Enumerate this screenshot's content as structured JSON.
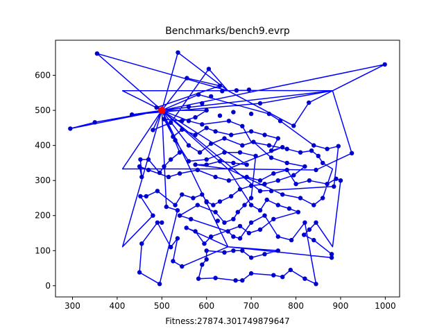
{
  "chart_data": {
    "type": "scatter",
    "title": "Benchmarks/bench9.evrp",
    "xlabel": "Fitness:27874.301749879647",
    "ylabel": "",
    "xlim": [
      262,
      1032
    ],
    "ylim": [
      -32,
      700
    ],
    "xticks": [
      300,
      400,
      500,
      600,
      700,
      800,
      900,
      1000
    ],
    "yticks": [
      0,
      100,
      200,
      300,
      400,
      500,
      600
    ],
    "grid": false,
    "colors": {
      "route": "#0000ff",
      "customer": "#0000cc",
      "depot": "#ff0000",
      "station": "#008000"
    },
    "depot": {
      "x": 500,
      "y": 500
    },
    "stations": [
      {
        "x": 412,
        "y": 556
      },
      {
        "x": 648,
        "y": 556
      },
      {
        "x": 882,
        "y": 556
      },
      {
        "x": 412,
        "y": 333
      },
      {
        "x": 648,
        "y": 333
      },
      {
        "x": 882,
        "y": 333
      },
      {
        "x": 412,
        "y": 111
      },
      {
        "x": 648,
        "y": 111
      },
      {
        "x": 882,
        "y": 111
      }
    ],
    "customers": [
      [
        355,
        662
      ],
      [
        536,
        665
      ],
      [
        999,
        631
      ],
      [
        605,
        618
      ],
      [
        556,
        592
      ],
      [
        630,
        570
      ],
      [
        635,
        555
      ],
      [
        667,
        557
      ],
      [
        582,
        545
      ],
      [
        695,
        559
      ],
      [
        829,
        522
      ],
      [
        488,
        508
      ],
      [
        295,
        448
      ],
      [
        350,
        466
      ],
      [
        433,
        488
      ],
      [
        480,
        444
      ],
      [
        520,
        465
      ],
      [
        560,
        470
      ],
      [
        590,
        460
      ],
      [
        650,
        470
      ],
      [
        680,
        455
      ],
      [
        795,
        456
      ],
      [
        525,
        425
      ],
      [
        545,
        445
      ],
      [
        575,
        430
      ],
      [
        600,
        450
      ],
      [
        620,
        440
      ],
      [
        655,
        430
      ],
      [
        700,
        440
      ],
      [
        730,
        430
      ],
      [
        760,
        420
      ],
      [
        840,
        400
      ],
      [
        870,
        390
      ],
      [
        895,
        398
      ],
      [
        925,
        378
      ],
      [
        835,
        385
      ],
      [
        850,
        370
      ],
      [
        860,
        350
      ],
      [
        810,
        380
      ],
      [
        780,
        390
      ],
      [
        740,
        400
      ],
      [
        705,
        410
      ],
      [
        680,
        400
      ],
      [
        640,
        420
      ],
      [
        610,
        405
      ],
      [
        585,
        380
      ],
      [
        560,
        400
      ],
      [
        540,
        380
      ],
      [
        520,
        360
      ],
      [
        505,
        340
      ],
      [
        495,
        322
      ],
      [
        470,
        360
      ],
      [
        452,
        360
      ],
      [
        455,
        310
      ],
      [
        450,
        340
      ],
      [
        470,
        330
      ],
      [
        515,
        310
      ],
      [
        540,
        320
      ],
      [
        580,
        330
      ],
      [
        620,
        310
      ],
      [
        650,
        300
      ],
      [
        690,
        310
      ],
      [
        720,
        300
      ],
      [
        750,
        320
      ],
      [
        780,
        330
      ],
      [
        800,
        290
      ],
      [
        830,
        300
      ],
      [
        870,
        290
      ],
      [
        890,
        305
      ],
      [
        900,
        300
      ],
      [
        885,
        283
      ],
      [
        860,
        250
      ],
      [
        840,
        230
      ],
      [
        810,
        250
      ],
      [
        770,
        260
      ],
      [
        745,
        270
      ],
      [
        720,
        270
      ],
      [
        700,
        250
      ],
      [
        685,
        230
      ],
      [
        670,
        210
      ],
      [
        660,
        190
      ],
      [
        640,
        180
      ],
      [
        620,
        210
      ],
      [
        600,
        240
      ],
      [
        590,
        260
      ],
      [
        570,
        250
      ],
      [
        545,
        260
      ],
      [
        530,
        230
      ],
      [
        535,
        215
      ],
      [
        510,
        225
      ],
      [
        490,
        270
      ],
      [
        465,
        255
      ],
      [
        452,
        255
      ],
      [
        480,
        200
      ],
      [
        500,
        180
      ],
      [
        540,
        200
      ],
      [
        565,
        190
      ],
      [
        580,
        230
      ],
      [
        600,
        238
      ],
      [
        625,
        185
      ],
      [
        648,
        155
      ],
      [
        660,
        140
      ],
      [
        675,
        135
      ],
      [
        700,
        180
      ],
      [
        730,
        200
      ],
      [
        760,
        140
      ],
      [
        790,
        130
      ],
      [
        820,
        180
      ],
      [
        845,
        180
      ],
      [
        830,
        160
      ],
      [
        818,
        145
      ],
      [
        840,
        130
      ],
      [
        880,
        90
      ],
      [
        880,
        80
      ],
      [
        845,
        5
      ],
      [
        820,
        20
      ],
      [
        788,
        45
      ],
      [
        770,
        25
      ],
      [
        750,
        30
      ],
      [
        700,
        35
      ],
      [
        680,
        15
      ],
      [
        665,
        15
      ],
      [
        620,
        22
      ],
      [
        582,
        20
      ],
      [
        590,
        60
      ],
      [
        600,
        75
      ],
      [
        600,
        100
      ],
      [
        640,
        95
      ],
      [
        660,
        100
      ],
      [
        680,
        100
      ],
      [
        700,
        80
      ],
      [
        730,
        90
      ],
      [
        760,
        100
      ],
      [
        545,
        55
      ],
      [
        525,
        70
      ],
      [
        535,
        135
      ],
      [
        520,
        110
      ],
      [
        490,
        180
      ],
      [
        455,
        120
      ],
      [
        450,
        38
      ],
      [
        495,
        5
      ],
      [
        560,
        510
      ],
      [
        590,
        520
      ],
      [
        610,
        540
      ],
      [
        720,
        520
      ],
      [
        740,
        490
      ],
      [
        765,
        470
      ],
      [
        700,
        490
      ],
      [
        660,
        495
      ],
      [
        630,
        485
      ],
      [
        600,
        500
      ],
      [
        575,
        480
      ],
      [
        545,
        470
      ],
      [
        505,
        475
      ],
      [
        530,
        415
      ],
      [
        560,
        355
      ],
      [
        600,
        360
      ],
      [
        640,
        380
      ],
      [
        675,
        380
      ],
      [
        710,
        370
      ],
      [
        745,
        365
      ],
      [
        780,
        350
      ],
      [
        820,
        340
      ],
      [
        845,
        330
      ],
      [
        795,
        315
      ],
      [
        760,
        300
      ],
      [
        730,
        290
      ],
      [
        700,
        285
      ],
      [
        675,
        275
      ],
      [
        655,
        255
      ],
      [
        630,
        240
      ],
      [
        615,
        230
      ],
      [
        700,
        230
      ],
      [
        720,
        215
      ],
      [
        735,
        245
      ],
      [
        760,
        230
      ],
      [
        785,
        220
      ],
      [
        805,
        210
      ],
      [
        750,
        190
      ],
      [
        720,
        160
      ],
      [
        695,
        150
      ],
      [
        675,
        170
      ],
      [
        610,
        140
      ],
      [
        595,
        120
      ],
      [
        575,
        155
      ],
      [
        555,
        165
      ],
      [
        745,
        385
      ],
      [
        770,
        395
      ],
      [
        690,
        345
      ],
      [
        660,
        350
      ],
      [
        630,
        355
      ],
      [
        600,
        345
      ],
      [
        575,
        345
      ]
    ],
    "route": [
      [
        500,
        500
      ],
      [
        355,
        662
      ],
      [
        648,
        556
      ],
      [
        536,
        665
      ],
      [
        500,
        500
      ],
      [
        556,
        592
      ],
      [
        630,
        570
      ],
      [
        488,
        508
      ],
      [
        500,
        500
      ],
      [
        999,
        631
      ],
      [
        829,
        522
      ],
      [
        795,
        456
      ],
      [
        648,
        556
      ],
      [
        412,
        556
      ],
      [
        500,
        500
      ],
      [
        295,
        448
      ],
      [
        350,
        466
      ],
      [
        500,
        500
      ],
      [
        433,
        488
      ],
      [
        720,
        520
      ],
      [
        882,
        556
      ],
      [
        925,
        378
      ],
      [
        845,
        330
      ],
      [
        648,
        333
      ],
      [
        500,
        500
      ],
      [
        882,
        556
      ],
      [
        667,
        557
      ],
      [
        648,
        556
      ],
      [
        605,
        618
      ],
      [
        520,
        465
      ],
      [
        480,
        444
      ],
      [
        500,
        500
      ],
      [
        582,
        545
      ],
      [
        740,
        490
      ],
      [
        765,
        470
      ],
      [
        840,
        400
      ],
      [
        870,
        390
      ],
      [
        895,
        398
      ],
      [
        885,
        283
      ],
      [
        720,
        270
      ],
      [
        500,
        500
      ],
      [
        560,
        470
      ],
      [
        590,
        460
      ],
      [
        650,
        470
      ],
      [
        680,
        455
      ],
      [
        700,
        410
      ],
      [
        740,
        400
      ],
      [
        780,
        390
      ],
      [
        810,
        380
      ],
      [
        835,
        385
      ],
      [
        850,
        370
      ],
      [
        860,
        350
      ],
      [
        882,
        333
      ],
      [
        860,
        250
      ],
      [
        840,
        230
      ],
      [
        810,
        250
      ],
      [
        770,
        260
      ],
      [
        648,
        333
      ],
      [
        500,
        500
      ],
      [
        525,
        425
      ],
      [
        545,
        445
      ],
      [
        575,
        430
      ],
      [
        600,
        450
      ],
      [
        620,
        440
      ],
      [
        655,
        430
      ],
      [
        700,
        440
      ],
      [
        730,
        430
      ],
      [
        760,
        420
      ],
      [
        745,
        385
      ],
      [
        770,
        395
      ],
      [
        648,
        333
      ],
      [
        412,
        333
      ],
      [
        500,
        500
      ],
      [
        540,
        380
      ],
      [
        520,
        360
      ],
      [
        505,
        340
      ],
      [
        495,
        322
      ],
      [
        470,
        360
      ],
      [
        452,
        360
      ],
      [
        455,
        310
      ],
      [
        450,
        340
      ],
      [
        470,
        330
      ],
      [
        515,
        310
      ],
      [
        540,
        320
      ],
      [
        580,
        330
      ],
      [
        620,
        310
      ],
      [
        650,
        300
      ],
      [
        690,
        310
      ],
      [
        720,
        300
      ],
      [
        750,
        320
      ],
      [
        780,
        330
      ],
      [
        800,
        290
      ],
      [
        830,
        300
      ],
      [
        870,
        290
      ],
      [
        890,
        305
      ],
      [
        900,
        300
      ],
      [
        882,
        111
      ],
      [
        845,
        180
      ],
      [
        830,
        160
      ],
      [
        818,
        145
      ],
      [
        840,
        130
      ],
      [
        880,
        90
      ],
      [
        880,
        80
      ],
      [
        648,
        111
      ],
      [
        500,
        500
      ],
      [
        560,
        400
      ],
      [
        585,
        380
      ],
      [
        610,
        405
      ],
      [
        640,
        420
      ],
      [
        680,
        400
      ],
      [
        705,
        410
      ],
      [
        745,
        365
      ],
      [
        780,
        350
      ],
      [
        820,
        340
      ],
      [
        795,
        315
      ],
      [
        760,
        300
      ],
      [
        730,
        290
      ],
      [
        700,
        285
      ],
      [
        675,
        275
      ],
      [
        655,
        255
      ],
      [
        630,
        240
      ],
      [
        615,
        230
      ],
      [
        600,
        240
      ],
      [
        590,
        260
      ],
      [
        570,
        250
      ],
      [
        545,
        260
      ],
      [
        530,
        230
      ],
      [
        490,
        270
      ],
      [
        465,
        255
      ],
      [
        452,
        255
      ],
      [
        480,
        200
      ],
      [
        412,
        111
      ],
      [
        500,
        500
      ],
      [
        600,
        500
      ],
      [
        575,
        480
      ],
      [
        545,
        470
      ],
      [
        505,
        475
      ],
      [
        530,
        415
      ],
      [
        560,
        355
      ],
      [
        600,
        360
      ],
      [
        640,
        380
      ],
      [
        675,
        380
      ],
      [
        710,
        370
      ],
      [
        700,
        250
      ],
      [
        685,
        230
      ],
      [
        670,
        210
      ],
      [
        660,
        190
      ],
      [
        640,
        180
      ],
      [
        620,
        210
      ],
      [
        580,
        230
      ],
      [
        540,
        200
      ],
      [
        565,
        190
      ],
      [
        648,
        155
      ],
      [
        660,
        140
      ],
      [
        675,
        135
      ],
      [
        700,
        180
      ],
      [
        730,
        200
      ],
      [
        760,
        140
      ],
      [
        790,
        130
      ],
      [
        820,
        180
      ],
      [
        845,
        5
      ],
      [
        820,
        20
      ],
      [
        788,
        45
      ],
      [
        770,
        25
      ],
      [
        750,
        30
      ],
      [
        700,
        35
      ],
      [
        680,
        15
      ],
      [
        665,
        15
      ],
      [
        620,
        22
      ],
      [
        582,
        20
      ],
      [
        590,
        60
      ],
      [
        600,
        75
      ],
      [
        600,
        100
      ],
      [
        640,
        95
      ],
      [
        660,
        100
      ],
      [
        680,
        100
      ],
      [
        700,
        80
      ],
      [
        730,
        90
      ],
      [
        760,
        100
      ],
      [
        648,
        111
      ],
      [
        545,
        55
      ],
      [
        525,
        70
      ],
      [
        535,
        135
      ],
      [
        520,
        110
      ],
      [
        490,
        180
      ],
      [
        455,
        120
      ],
      [
        450,
        38
      ],
      [
        495,
        5
      ],
      [
        535,
        215
      ],
      [
        510,
        225
      ],
      [
        500,
        500
      ],
      [
        690,
        345
      ],
      [
        660,
        350
      ],
      [
        630,
        355
      ],
      [
        600,
        345
      ],
      [
        575,
        345
      ],
      [
        648,
        333
      ],
      [
        700,
        230
      ],
      [
        720,
        215
      ],
      [
        735,
        245
      ],
      [
        760,
        230
      ],
      [
        785,
        220
      ],
      [
        805,
        210
      ],
      [
        750,
        190
      ],
      [
        720,
        160
      ],
      [
        695,
        150
      ],
      [
        675,
        170
      ],
      [
        610,
        140
      ],
      [
        595,
        120
      ],
      [
        575,
        155
      ],
      [
        555,
        165
      ],
      [
        648,
        111
      ]
    ]
  }
}
